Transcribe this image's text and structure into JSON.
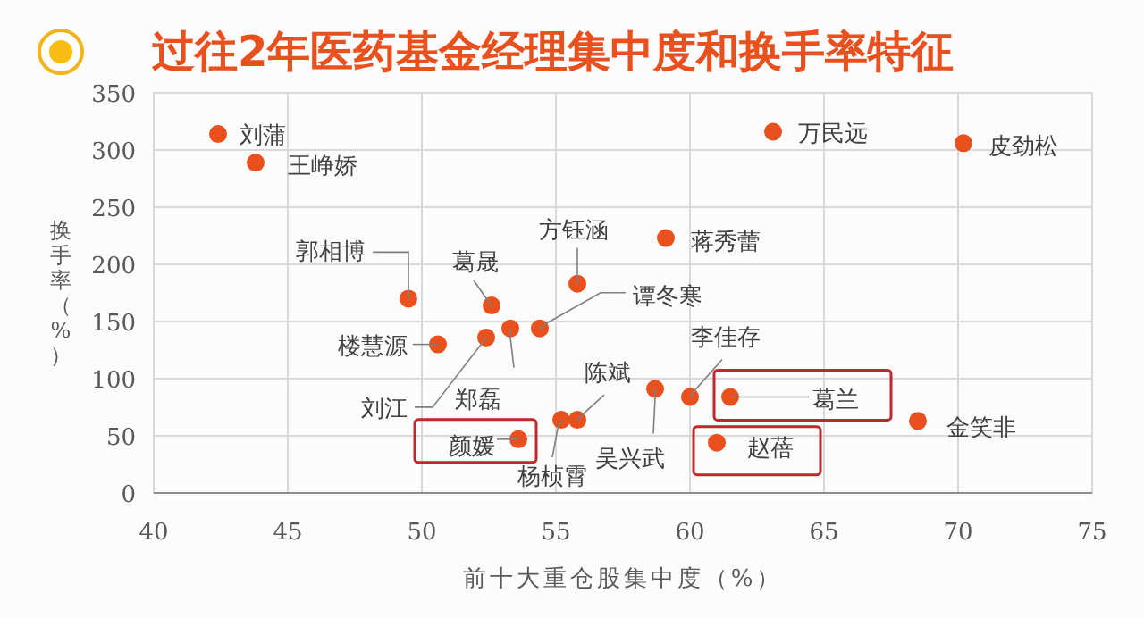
{
  "chart_data": {
    "type": "scatter",
    "title": "过往2年医药基金经理集中度和换手率特征",
    "xlabel": "前十大重仓股集中度（%）",
    "ylabel": "换手率（%）",
    "xlim": [
      40,
      75
    ],
    "xticks": [
      40,
      45,
      50,
      55,
      60,
      65,
      70,
      75
    ],
    "ylim": [
      0,
      350
    ],
    "yticks": [
      0,
      50,
      100,
      150,
      200,
      250,
      300,
      350
    ],
    "grid": true,
    "marker": "circle",
    "series": [
      {
        "color": "#e8501e",
        "x": [
          42.4,
          43.8,
          63.1,
          70.2,
          49.5,
          52.6,
          55.8,
          59.1,
          54.4,
          53.3,
          52.4,
          50.6,
          53.6,
          55.2,
          55.8,
          58.7,
          60.0,
          61.5,
          61.0,
          68.5
        ],
        "values": [
          314,
          289,
          316,
          306,
          170,
          164,
          183,
          223,
          144,
          144,
          136,
          130,
          47,
          64,
          64,
          91,
          84,
          84,
          44,
          63
        ]
      }
    ],
    "annotations": [
      {
        "text": "刘蒲",
        "x": 42.4,
        "y": 314
      },
      {
        "text": "王峥娇",
        "x": 43.8,
        "y": 289
      },
      {
        "text": "万民远",
        "x": 63.1,
        "y": 316
      },
      {
        "text": "皮劲松",
        "x": 70.2,
        "y": 306
      },
      {
        "text": "郭相博",
        "x": 49.5,
        "y": 170
      },
      {
        "text": "葛晟",
        "x": 52.6,
        "y": 164
      },
      {
        "text": "方钰涵",
        "x": 55.8,
        "y": 183
      },
      {
        "text": "蒋秀蕾",
        "x": 59.1,
        "y": 223
      },
      {
        "text": "谭冬寒",
        "x": 54.4,
        "y": 144
      },
      {
        "text": "郑磊",
        "x": 53.3,
        "y": 144
      },
      {
        "text": "刘江",
        "x": 52.4,
        "y": 136
      },
      {
        "text": "楼慧源",
        "x": 50.6,
        "y": 130
      },
      {
        "text": "颜媛",
        "x": 53.6,
        "y": 47
      },
      {
        "text": "杨桢霄",
        "x": 55.2,
        "y": 64
      },
      {
        "text": "陈斌",
        "x": 55.8,
        "y": 64
      },
      {
        "text": "吴兴武",
        "x": 58.7,
        "y": 91
      },
      {
        "text": "李佳存",
        "x": 60.0,
        "y": 84
      },
      {
        "text": "葛兰",
        "x": 61.5,
        "y": 84
      },
      {
        "text": "赵蓓",
        "x": 61.0,
        "y": 44
      },
      {
        "text": "金笑非",
        "x": 68.5,
        "y": 63
      }
    ]
  }
}
